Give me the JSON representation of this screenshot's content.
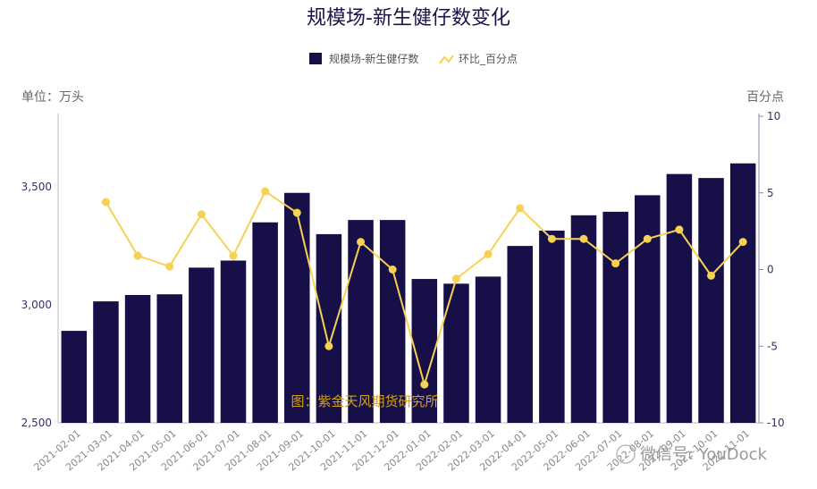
{
  "chart_data": {
    "type": "bar+line",
    "title": "规模场-新生健仔数变化",
    "left_axis_label": "单位：万头",
    "right_axis_label": "百分点",
    "categories": [
      "2021-02-01",
      "2021-03-01",
      "2021-04-01",
      "2021-05-01",
      "2021-06-01",
      "2021-07-01",
      "2021-08-01",
      "2021-09-01",
      "2021-10-01",
      "2021-11-01",
      "2021-12-01",
      "2022-01-01",
      "2022-02-01",
      "2022-03-01",
      "2022-04-01",
      "2022-05-01",
      "2022-06-01",
      "2022-07-01",
      "2022-08-01",
      "2022-09-01",
      "2022-10-01",
      "2022-11-01"
    ],
    "series": [
      {
        "name": "规模场-新生健仔数",
        "type": "bar",
        "axis": "left",
        "color": "#170f47",
        "values": [
          2890,
          3015,
          3042,
          3045,
          3158,
          3188,
          3350,
          3475,
          3300,
          3360,
          3360,
          3110,
          3090,
          3120,
          3250,
          3315,
          3380,
          3395,
          3465,
          3555,
          3538,
          3600
        ]
      },
      {
        "name": "环比_百分点",
        "type": "line",
        "axis": "right",
        "color": "#f7d154",
        "values": [
          null,
          4.4,
          0.9,
          0.2,
          3.6,
          0.9,
          5.1,
          3.7,
          -5.0,
          1.8,
          0.0,
          -7.5,
          -0.6,
          1.0,
          4.0,
          2.0,
          2.0,
          0.4,
          2.0,
          2.6,
          -0.4,
          1.8
        ]
      }
    ],
    "left_ylim": [
      2500,
      3800
    ],
    "left_yticks": [
      "2,500",
      "3,000",
      "3,500"
    ],
    "right_ylim": [
      -10,
      10
    ],
    "right_yticks": [
      "-10",
      "-5",
      "0",
      "5",
      "10"
    ],
    "legend_position": "top-center",
    "grid": false
  },
  "watermark": "图：紫金天风期货研究所",
  "wechat_label": "微信号: YouDock"
}
